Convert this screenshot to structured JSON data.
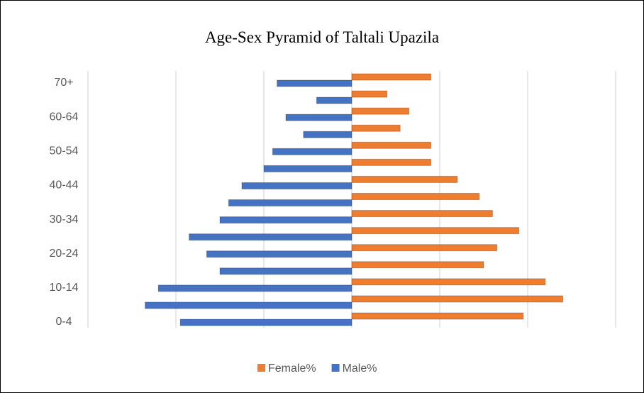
{
  "chart_data": {
    "type": "bar",
    "orientation": "horizontal",
    "title": "Age-Sex Pyramid of Taltali Upazila",
    "categories": [
      "0-4",
      null,
      "10-14",
      null,
      "20-24",
      null,
      "30-34",
      null,
      "40-44",
      null,
      "50-54",
      null,
      "60-64",
      null,
      "70+"
    ],
    "series": [
      {
        "name": "Female%",
        "color": "#ed7d31",
        "values": [
          3.9,
          4.8,
          4.4,
          3.0,
          3.3,
          3.8,
          3.2,
          2.9,
          2.4,
          1.8,
          1.8,
          1.1,
          1.3,
          0.8,
          1.8
        ]
      },
      {
        "name": "Male%",
        "color": "#4472c4",
        "values": [
          -3.9,
          -4.7,
          -4.4,
          -3.0,
          -3.3,
          -3.7,
          -3.0,
          -2.8,
          -2.5,
          -2.0,
          -1.8,
          -1.1,
          -1.5,
          -0.8,
          -1.7
        ]
      }
    ],
    "xlim": [
      -6,
      6
    ],
    "xticks": [
      -6,
      -4,
      -2,
      0,
      2,
      4,
      6
    ],
    "grid": true,
    "legend": "bottom"
  }
}
